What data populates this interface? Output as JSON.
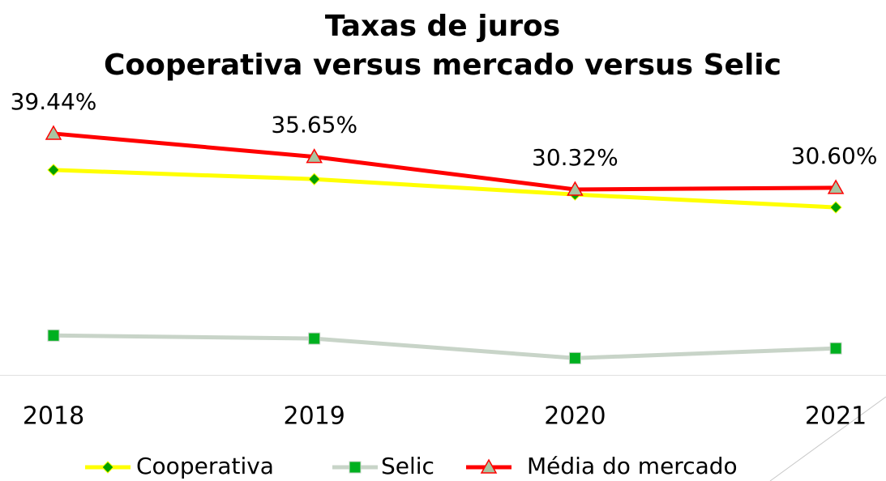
{
  "chart_data": {
    "type": "line",
    "title": "Taxas de juros",
    "subtitle": "Cooperativa versus mercado versus Selic",
    "categories": [
      "2018",
      "2019",
      "2020",
      "2021"
    ],
    "series": [
      {
        "name": "Cooperativa",
        "color": "#ffff00",
        "marker": "diamond",
        "marker_color": "#00a000",
        "values": [
          33.5,
          32.0,
          29.5,
          27.4
        ]
      },
      {
        "name": "Selic",
        "color": "#c8d4c8",
        "marker": "square",
        "marker_color": "#00b020",
        "values": [
          6.5,
          6.0,
          2.8,
          4.4
        ]
      },
      {
        "name": "Média do mercado",
        "color": "#ff0000",
        "marker": "triangle",
        "marker_color": "#a9c4a0",
        "values": [
          39.44,
          35.65,
          30.32,
          30.6
        ],
        "value_labels": [
          "39.44%",
          "35.65%",
          "30.32%",
          "30.60%"
        ]
      }
    ],
    "ylim": [
      0,
      40
    ]
  }
}
